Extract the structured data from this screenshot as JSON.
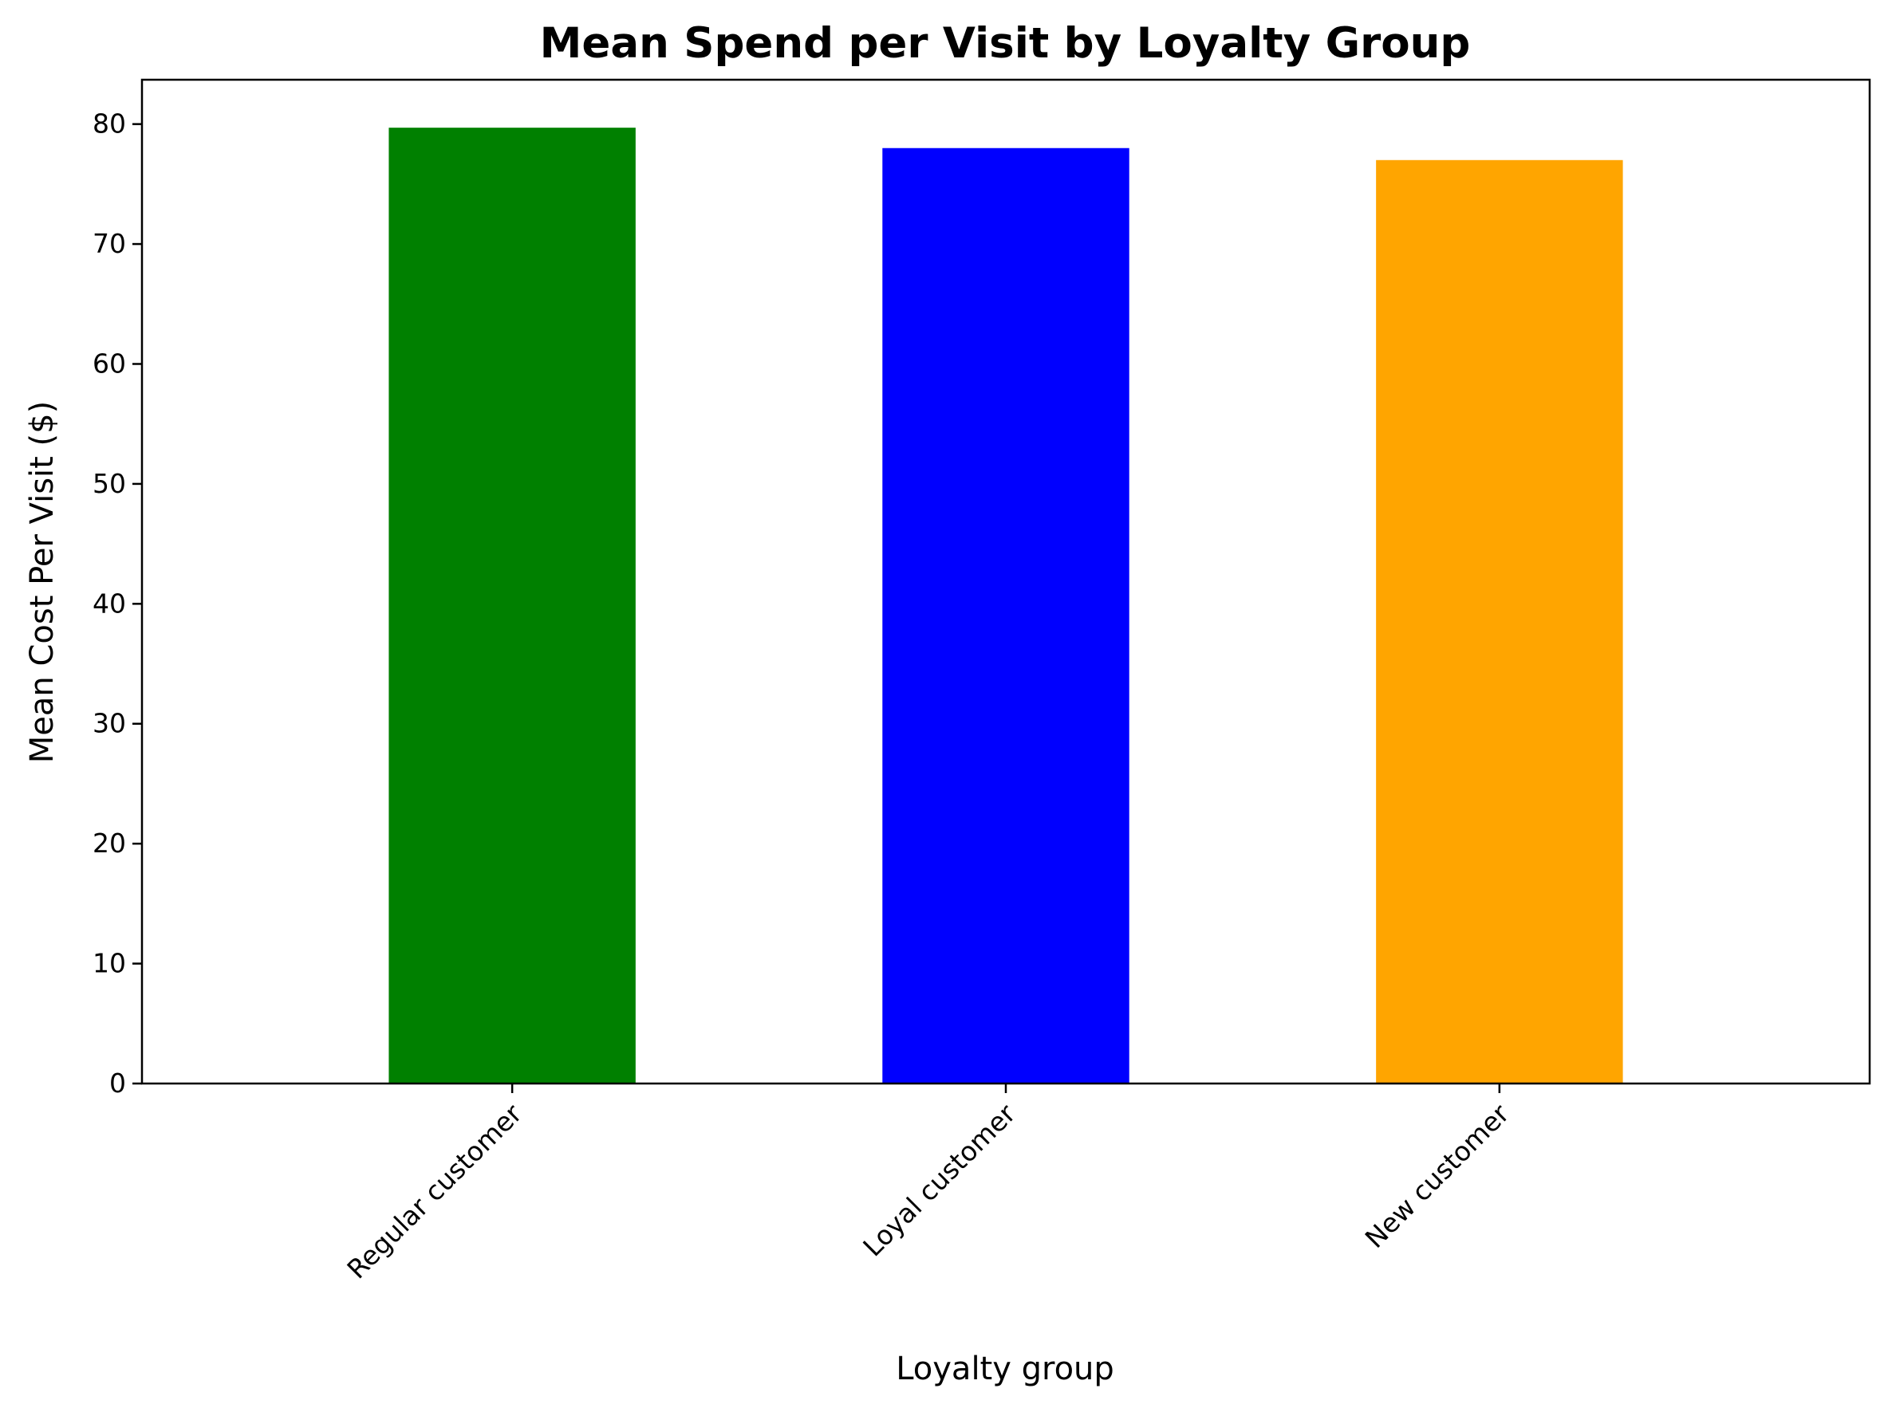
{
  "chart_data": {
    "type": "bar",
    "title": "Mean Spend per Visit by Loyalty Group",
    "xlabel": "Loyalty group",
    "ylabel": "Mean Cost Per Visit ($)",
    "categories": [
      "Regular customer",
      "Loyal customer",
      "New customer"
    ],
    "values": [
      79.7,
      78.0,
      77.0
    ],
    "colors": [
      "#008000",
      "#0000ff",
      "#ffa500"
    ],
    "ylim": [
      0,
      83.7
    ],
    "yticks": [
      0,
      10,
      20,
      30,
      40,
      50,
      60,
      70,
      80
    ],
    "grid": false,
    "legend": "none",
    "xtick_rotation": 45
  }
}
